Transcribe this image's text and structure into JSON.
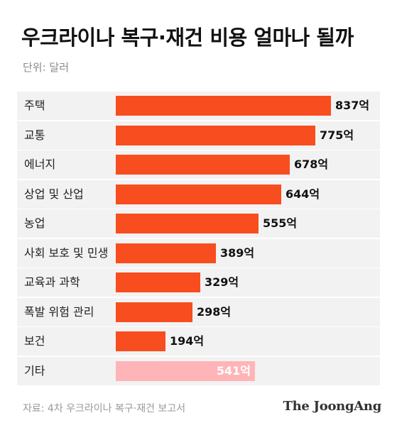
{
  "header": {
    "title": "우크라이나 복구·재건 비용 얼마나 될까",
    "unit": "단위: 달러"
  },
  "colors": {
    "bar": "#f84d1e",
    "bar_muted": "#ffb5b8",
    "row_bg": "#f2f2f2"
  },
  "chart_data": {
    "type": "bar",
    "orientation": "horizontal",
    "title": "우크라이나 복구·재건 비용 얼마나 될까",
    "unit": "단위: 달러",
    "categories": [
      "주택",
      "교통",
      "에너지",
      "상업 및 산업",
      "농업",
      "사회 보호 및 민생",
      "교육과 과학",
      "폭발 위험 관리",
      "보건",
      "기타"
    ],
    "values": [
      837,
      775,
      678,
      644,
      555,
      389,
      329,
      298,
      194,
      541
    ],
    "value_labels": [
      "837억",
      "775억",
      "678억",
      "644억",
      "555억",
      "389억",
      "329억",
      "298억",
      "194억",
      "541억"
    ],
    "highlight": [
      "main",
      "main",
      "main",
      "main",
      "main",
      "main",
      "main",
      "main",
      "main",
      "muted"
    ],
    "xlim": [
      0,
      837
    ],
    "grid": false,
    "legend": "none"
  },
  "footer": {
    "source": "자료: 4차 우크라이나 복구·재건 보고서",
    "brand": "The JoongAng"
  }
}
